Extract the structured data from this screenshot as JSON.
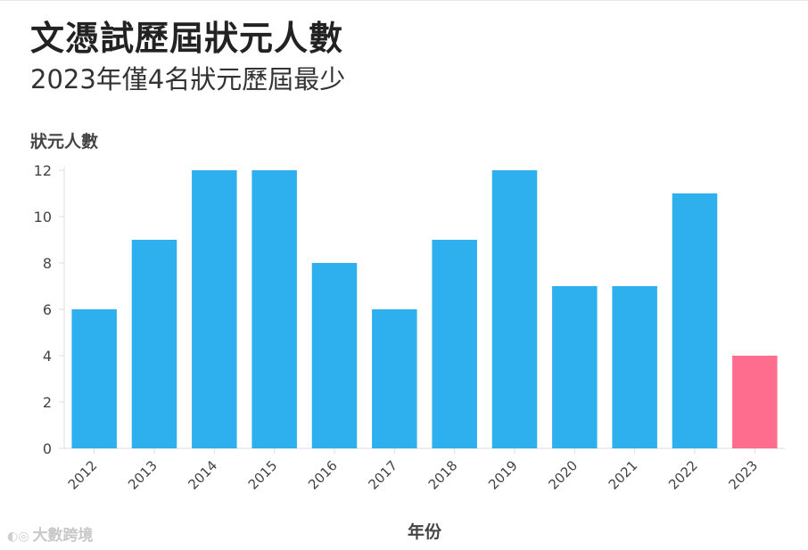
{
  "header": {
    "title": "文憑試歷屆狀元人數",
    "subtitle": "2023年僅4名狀元歷屆最少"
  },
  "watermark": {
    "text": "大數跨境"
  },
  "colors": {
    "bar": "#2eb0ee",
    "highlight": "#ff6d8e",
    "axis": "#dddddd",
    "text": "#444444"
  },
  "chart_data": {
    "type": "bar",
    "title": "文憑試歷屆狀元人數",
    "subtitle": "2023年僅4名狀元歷屆最少",
    "xlabel": "年份",
    "ylabel": "狀元人數",
    "categories": [
      "2012",
      "2013",
      "2014",
      "2015",
      "2016",
      "2017",
      "2018",
      "2019",
      "2020",
      "2021",
      "2022",
      "2023"
    ],
    "values": [
      6,
      9,
      12,
      12,
      8,
      6,
      9,
      12,
      7,
      7,
      11,
      4
    ],
    "highlight_index": 11,
    "ylim": [
      0,
      12
    ],
    "yticks": [
      0,
      2,
      4,
      6,
      8,
      10,
      12
    ],
    "grid": false,
    "legend": "none"
  }
}
